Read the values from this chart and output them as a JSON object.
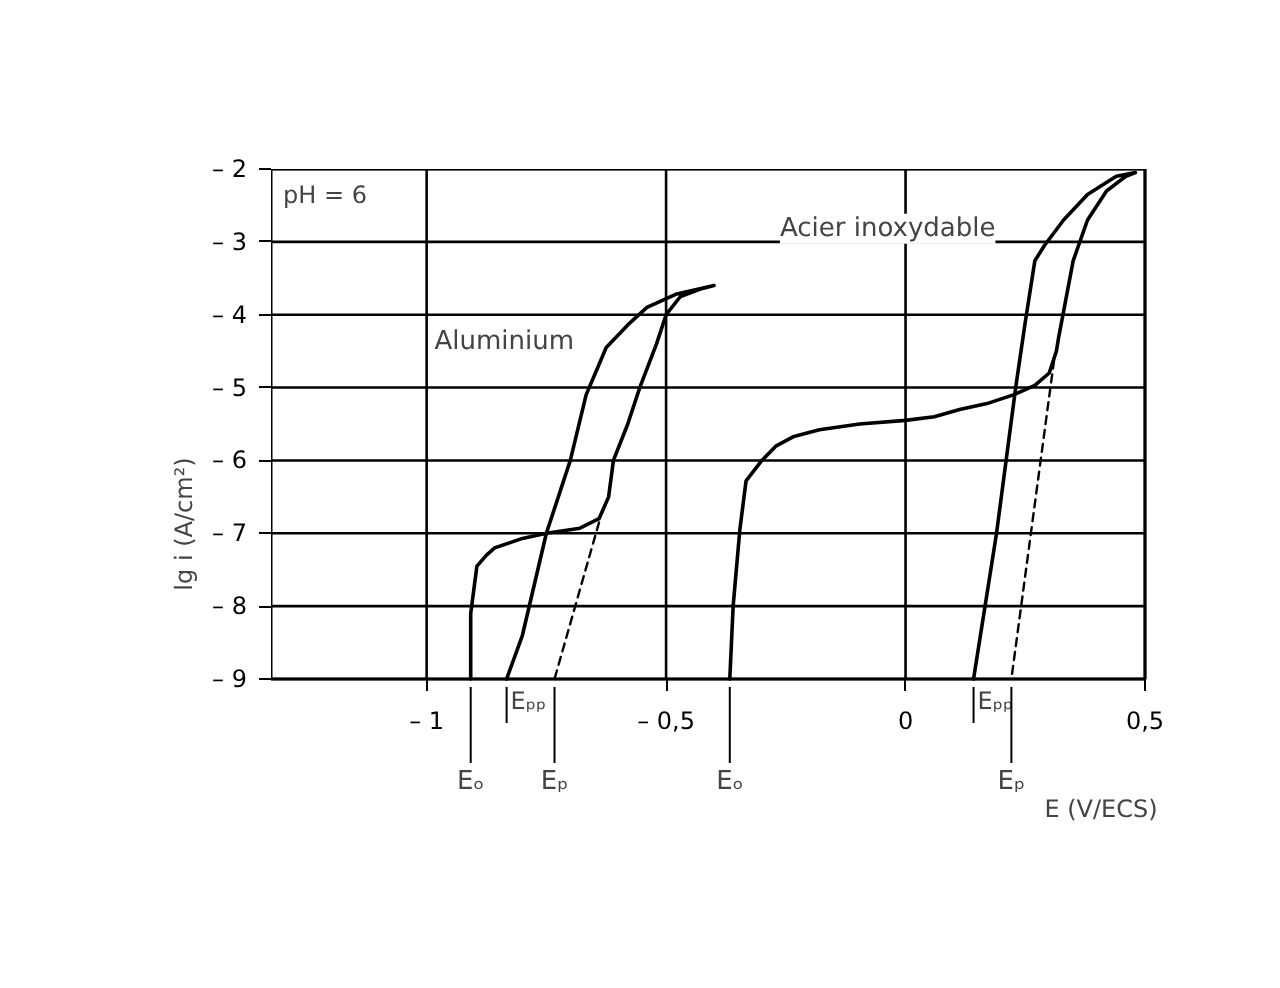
{
  "chart_data": {
    "type": "line",
    "xlabel": "E (V/ECS)",
    "ylabel": "lg i (A/cm²)",
    "xlim": [
      -1.325,
      0.5
    ],
    "ylim": [
      -9,
      -2
    ],
    "xticks": [
      {
        "value": -1,
        "label": "– 1"
      },
      {
        "value": -0.5,
        "label": "– 0,5"
      },
      0,
      {
        "value": 0.5,
        "label": "0,5"
      }
    ],
    "yticks": [
      {
        "value": -9,
        "label": "– 9"
      },
      {
        "value": -8,
        "label": "– 8"
      },
      {
        "value": -7,
        "label": "– 7"
      },
      {
        "value": -6,
        "label": "– 6"
      },
      {
        "value": -5,
        "label": "– 5"
      },
      {
        "value": -4,
        "label": "– 4"
      },
      {
        "value": -3,
        "label": "– 3"
      },
      {
        "value": -2,
        "label": "– 2"
      }
    ],
    "grid": true,
    "marker": "none",
    "legend": false,
    "series": [
      {
        "name": "Aluminium",
        "color": "#000000",
        "line_style": "solid",
        "x": [
          -0.908,
          -0.908,
          -0.9,
          -0.895,
          -0.875,
          -0.858,
          -0.8,
          -0.75,
          -0.68,
          -0.64,
          -0.62,
          -0.61,
          -0.58,
          -0.555,
          -0.52,
          -0.5,
          -0.47,
          -0.43,
          -0.4,
          -0.48,
          -0.54,
          -0.58,
          -0.625,
          -0.667,
          -0.7,
          -0.75,
          -0.8,
          -0.833
        ],
        "values": [
          -9,
          -8.1,
          -7.7,
          -7.45,
          -7.3,
          -7.2,
          -7.07,
          -7.0,
          -6.93,
          -6.8,
          -6.5,
          -6.0,
          -5.5,
          -5.0,
          -4.4,
          -4.0,
          -3.75,
          -3.65,
          -3.6,
          -3.72,
          -3.9,
          -4.14,
          -4.45,
          -5.1,
          -6.0,
          -7.0,
          -8.4,
          -9
        ]
      },
      {
        "name": "Acier inoxydable",
        "color": "#000000",
        "line_style": "solid",
        "x": [
          -0.367,
          -0.36,
          -0.346,
          -0.333,
          -0.3,
          -0.27,
          -0.233,
          -0.18,
          -0.096,
          0.0,
          0.06,
          0.113,
          0.17,
          0.225,
          0.27,
          0.3,
          0.315,
          0.32,
          0.35,
          0.38,
          0.42,
          0.46,
          0.48,
          0.44,
          0.38,
          0.33,
          0.29,
          0.27,
          0.25,
          0.23,
          0.19,
          0.142
        ],
        "values": [
          -9,
          -8.0,
          -6.95,
          -6.28,
          -6.0,
          -5.8,
          -5.67,
          -5.58,
          -5.5,
          -5.45,
          -5.4,
          -5.3,
          -5.22,
          -5.1,
          -4.97,
          -4.8,
          -4.5,
          -4.3,
          -3.26,
          -2.7,
          -2.3,
          -2.1,
          -2.05,
          -2.1,
          -2.35,
          -2.7,
          -3.05,
          -3.26,
          -4.1,
          -5.0,
          -7.0,
          -9
        ]
      },
      {
        "color": "#000000",
        "line_style": "dashed",
        "x": [
          -0.64,
          -0.733
        ],
        "values": [
          -6.85,
          -9
        ]
      },
      {
        "color": "#000000",
        "line_style": "dashed",
        "x": [
          0.31,
          0.221
        ],
        "values": [
          -4.63,
          -9
        ]
      }
    ],
    "annotations": [
      "pH = 6",
      {
        "text": "Eₒ",
        "x": -0.908,
        "y": -9
      },
      {
        "text": "Eₚₚ",
        "x": -0.833,
        "y": -9
      },
      {
        "text": "Eₚ",
        "x": -0.733,
        "y": -9
      },
      {
        "text": "Eₒ",
        "x": -0.367,
        "y": -9
      },
      {
        "text": "Eₚₚ",
        "x": 0.142,
        "y": -9
      },
      {
        "text": "Eₚ",
        "x": 0.221,
        "y": -9
      }
    ]
  }
}
